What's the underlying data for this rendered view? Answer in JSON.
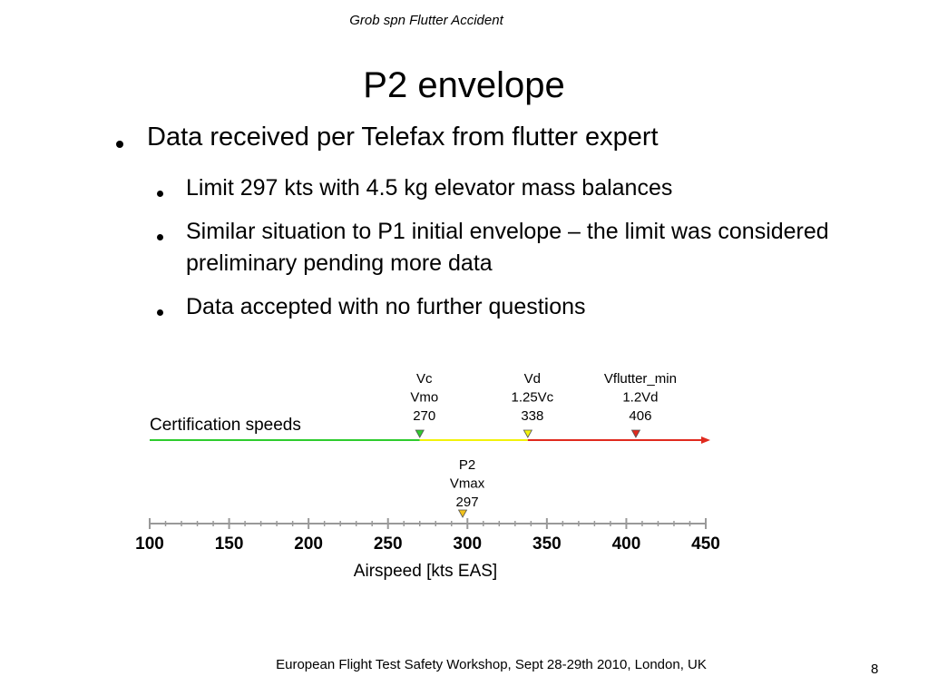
{
  "header": "Grob spn Flutter Accident",
  "title": "P2 envelope",
  "bullet": {
    "text": "Data received per Telefax from flutter expert",
    "sub": [
      "Limit 297 kts with 4.5 kg elevator mass balances",
      "Similar situation to P1 initial envelope – the limit was considered preliminary pending more data",
      "Data accepted with no further questions"
    ]
  },
  "diagram": {
    "speed_line_label": "Certification speeds",
    "xlim": [
      100,
      450
    ],
    "xticks": [
      100,
      150,
      200,
      250,
      300,
      350,
      400,
      450
    ],
    "x_label": "Airspeed [kts EAS]",
    "speed_markers": [
      {
        "labels": [
          "Vc",
          "Vmo"
        ],
        "value": 270,
        "color": "#2ecc2e"
      },
      {
        "labels": [
          "Vd",
          "1.25Vc"
        ],
        "value": 338,
        "color": "#f2f20a"
      },
      {
        "labels": [
          "Vflutter_min",
          "1.2Vd"
        ],
        "value": 406,
        "color": "#e02a1e"
      }
    ],
    "envelope_marker": {
      "labels": [
        "P2",
        "Vmax"
      ],
      "value": 297,
      "color": "#f2c21a"
    }
  },
  "footer": "European Flight Test Safety Workshop, Sept 28-29th 2010, London, UK",
  "page_number": 8
}
